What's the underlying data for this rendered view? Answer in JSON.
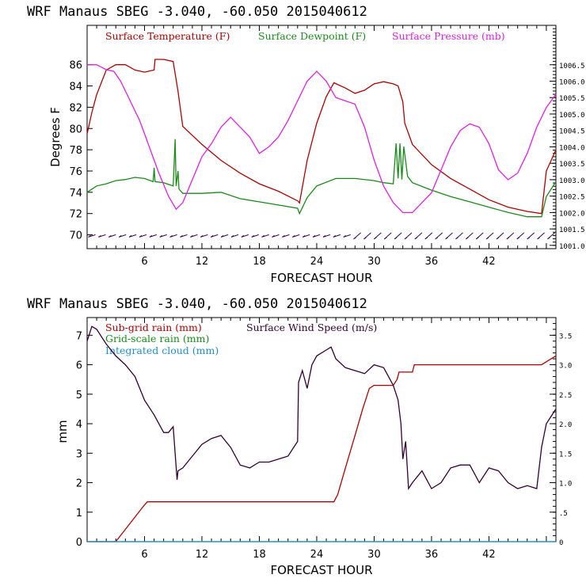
{
  "top_panel": {
    "title": "WRF   Manaus SBEG   -3.040, -60.050  2015040612",
    "ylabel": "Degrees F",
    "xlabel": "FORECAST HOUR",
    "legend": {
      "temperature": "Surface Temperature (F)",
      "dewpoint": "Surface Dewpoint (F)",
      "pressure": "Surface Pressure (mb)"
    }
  },
  "bottom_panel": {
    "title": "WRF   Manaus SBEG   -3.040, -60.050  2015040612",
    "ylabel": "mm",
    "xlabel": "FORECAST HOUR",
    "legend": {
      "subgrid": "Sub-grid rain (mm)",
      "wind": "Surface Wind Speed (m/s)",
      "gridscale": "Grid-scale rain (mm)",
      "cloud": "Integrated cloud (mm)"
    }
  },
  "colors": {
    "temperature": "#b00000",
    "dewpoint": "#1a8a1a",
    "pressure": "#e020e0",
    "subgrid": "#b00000",
    "gridscale": "#1a8a1a",
    "wind": "#330033",
    "cloud": "#1e90d0",
    "barbs": "#3a005a"
  },
  "chart_data": [
    {
      "type": "line",
      "x_range": [
        0,
        49
      ],
      "x_ticks": [
        6,
        12,
        18,
        24,
        30,
        36,
        42
      ],
      "x_tick_labels": [
        "6",
        "12",
        "18",
        "24",
        "30",
        "36",
        "42"
      ],
      "ylim": [
        68.7,
        89.7
      ],
      "y_ticks": [
        70,
        72,
        74,
        76,
        78,
        80,
        82,
        84,
        86
      ],
      "y_tick_labels": [
        "70",
        "72",
        "74",
        "76",
        "78",
        "80",
        "82",
        "84",
        "86"
      ],
      "y2_range": [
        1000.9,
        1007.7
      ],
      "y2_ticks": [
        1001.0,
        1001.5,
        1002.0,
        1002.5,
        1003.0,
        1003.5,
        1004.0,
        1004.5,
        1005.0,
        1005.5,
        1006.0,
        1006.5
      ],
      "y2_tick_labels": [
        "1001.0",
        "1001.5",
        "1002.0",
        "1002.5",
        "1003.0",
        "1003.5",
        "1004.0",
        "1004.5",
        "1005.0",
        "1005.5",
        "1006.0",
        "1006.5"
      ],
      "series": [
        {
          "name": "Surface Temperature (F)",
          "axis": "left",
          "x": [
            0,
            0.5,
            1,
            2,
            3,
            4,
            5,
            6,
            7,
            7.1,
            8,
            9,
            9.5,
            10,
            12,
            14,
            16,
            18,
            20,
            22,
            22.2,
            23,
            24,
            25,
            25.8,
            27,
            28,
            29,
            30,
            31,
            32,
            32.5,
            33,
            33.2,
            34,
            36,
            38,
            40,
            42,
            44,
            46,
            47.5,
            48,
            49
          ],
          "values": [
            79.5,
            81.5,
            83.2,
            85.5,
            86.0,
            86.0,
            85.5,
            85.3,
            85.5,
            86.5,
            86.5,
            86.3,
            83.5,
            80.2,
            78.5,
            77.0,
            75.8,
            74.8,
            74.1,
            73.2,
            73.0,
            77.0,
            80.5,
            83.0,
            84.3,
            83.8,
            83.3,
            83.6,
            84.2,
            84.4,
            84.2,
            84.0,
            82.5,
            80.5,
            78.5,
            76.6,
            75.3,
            74.3,
            73.3,
            72.6,
            72.2,
            72.0,
            76.0,
            78.0
          ]
        },
        {
          "name": "Surface Dewpoint (F)",
          "axis": "left",
          "x": [
            0,
            1,
            2,
            3,
            4,
            5,
            6,
            6.9,
            7,
            7.1,
            8,
            9,
            9.2,
            9.3,
            9.5,
            9.6,
            10,
            12,
            14,
            16,
            18,
            20,
            22,
            22.2,
            23,
            24,
            26,
            28,
            30,
            31,
            32,
            32.3,
            32.5,
            32.7,
            32.9,
            33.1,
            33.5,
            34,
            36,
            38,
            40,
            42,
            44,
            46,
            47,
            47.5,
            48,
            49
          ],
          "values": [
            74.0,
            74.6,
            74.8,
            75.1,
            75.2,
            75.4,
            75.3,
            75.0,
            76.3,
            75.0,
            74.9,
            74.6,
            79.0,
            74.6,
            76.0,
            74.3,
            73.9,
            73.9,
            74.0,
            73.4,
            73.1,
            72.8,
            72.5,
            72.0,
            73.5,
            74.6,
            75.3,
            75.3,
            75.1,
            74.9,
            74.8,
            78.6,
            75.3,
            78.6,
            75.2,
            78.3,
            75.5,
            74.9,
            74.2,
            73.6,
            73.1,
            72.6,
            72.1,
            71.7,
            71.7,
            71.7,
            73.6,
            75.0
          ]
        },
        {
          "name": "Surface Pressure (mb)",
          "axis": "right",
          "x": [
            0,
            1,
            2,
            2.8,
            3.5,
            4.5,
            5.5,
            6.5,
            7.5,
            8.5,
            9.3,
            10,
            11,
            12,
            13,
            14,
            15,
            16,
            17,
            18,
            19,
            20,
            21,
            22,
            23,
            24,
            25,
            26,
            27,
            28,
            29,
            30,
            31,
            32,
            33,
            34,
            35,
            36,
            37,
            38,
            39,
            40,
            41,
            42,
            43,
            44,
            45,
            46,
            47,
            48,
            49
          ],
          "values": [
            1006.5,
            1006.5,
            1006.35,
            1006.3,
            1006.0,
            1005.4,
            1004.8,
            1004.0,
            1003.2,
            1002.5,
            1002.1,
            1002.3,
            1003.0,
            1003.7,
            1004.1,
            1004.6,
            1004.9,
            1004.6,
            1004.3,
            1003.8,
            1004.0,
            1004.3,
            1004.8,
            1005.4,
            1006.0,
            1006.3,
            1006.0,
            1005.5,
            1005.4,
            1005.3,
            1004.6,
            1003.6,
            1002.8,
            1002.3,
            1002.0,
            1002.0,
            1002.3,
            1002.6,
            1003.3,
            1004.0,
            1004.5,
            1004.7,
            1004.6,
            1004.1,
            1003.3,
            1003.0,
            1003.2,
            1003.8,
            1004.6,
            1005.2,
            1005.6
          ]
        }
      ],
      "wind_barbs": {
        "x_start": 0.5,
        "x_end": 48.5,
        "count": 46,
        "y_value": 69.9,
        "angle_change_hour": 28
      }
    },
    {
      "type": "line",
      "x_range": [
        0,
        49
      ],
      "x_ticks": [
        6,
        12,
        18,
        24,
        30,
        36,
        42
      ],
      "x_tick_labels": [
        "6",
        "12",
        "18",
        "24",
        "30",
        "36",
        "42"
      ],
      "ylim": [
        0,
        7.6
      ],
      "y_ticks": [
        0,
        1,
        2,
        3,
        4,
        5,
        6,
        7
      ],
      "y_tick_labels": [
        "0",
        "1",
        "2",
        "3",
        "4",
        "5",
        "6",
        "7"
      ],
      "y2_range": [
        0,
        3.8
      ],
      "y2_ticks": [
        0,
        0.5,
        1.0,
        1.5,
        2.0,
        2.5,
        3.0,
        3.5
      ],
      "y2_tick_labels": [
        "0",
        ".5",
        "1.0",
        "1.5",
        "2.0",
        "2.5",
        "3.0",
        "3.5"
      ],
      "series": [
        {
          "name": "Sub-grid rain (mm)",
          "axis": "left",
          "x": [
            0,
            3.0,
            6.0,
            6.3,
            12,
            18,
            24,
            25.8,
            26.2,
            27,
            28,
            28.8,
            29.5,
            30,
            31,
            32,
            32.4,
            32.6,
            33.5,
            34.0,
            34.2,
            36,
            42,
            47.5,
            48.5,
            49
          ],
          "values": [
            0,
            0,
            1.25,
            1.35,
            1.35,
            1.35,
            1.35,
            1.35,
            1.6,
            2.5,
            3.6,
            4.5,
            5.2,
            5.3,
            5.3,
            5.3,
            5.5,
            5.75,
            5.75,
            5.75,
            6.0,
            6.0,
            6.0,
            6.0,
            6.2,
            6.3
          ]
        },
        {
          "name": "Surface Wind Speed (m/s)",
          "axis": "right",
          "x": [
            0,
            0.5,
            1,
            2,
            3,
            4,
            5,
            6,
            7,
            8,
            8.5,
            9.0,
            9.4,
            9.5,
            10,
            11,
            12,
            13,
            14,
            15,
            16,
            17,
            18,
            19,
            20,
            21,
            22,
            22.1,
            22.5,
            23,
            23.5,
            24,
            25,
            25.5,
            26,
            27,
            28,
            29,
            30,
            31,
            32,
            32.5,
            32.8,
            33.0,
            33.3,
            33.6,
            34,
            35,
            36,
            37,
            38,
            39,
            40,
            41,
            42,
            43,
            44,
            45,
            46,
            47,
            47.5,
            48,
            49
          ],
          "values": [
            3.4,
            3.65,
            3.6,
            3.35,
            3.15,
            3.0,
            2.8,
            2.4,
            2.15,
            1.85,
            1.85,
            1.95,
            1.05,
            1.2,
            1.25,
            1.45,
            1.65,
            1.75,
            1.8,
            1.6,
            1.3,
            1.25,
            1.35,
            1.35,
            1.4,
            1.45,
            1.7,
            2.7,
            2.9,
            2.6,
            3.0,
            3.15,
            3.25,
            3.3,
            3.1,
            2.95,
            2.9,
            2.85,
            3.0,
            2.95,
            2.65,
            2.4,
            2.0,
            1.4,
            1.7,
            0.9,
            1.0,
            1.2,
            0.9,
            1.0,
            1.25,
            1.3,
            1.3,
            1.0,
            1.25,
            1.2,
            1.0,
            0.9,
            0.95,
            0.9,
            1.6,
            2.0,
            2.25
          ]
        },
        {
          "name": "Grid-scale rain (mm)",
          "axis": "left",
          "x": [
            0,
            49
          ],
          "values": [
            0,
            0
          ]
        },
        {
          "name": "Integrated cloud (mm)",
          "axis": "left",
          "x": [
            0,
            49
          ],
          "values": [
            0,
            0
          ]
        }
      ]
    }
  ]
}
